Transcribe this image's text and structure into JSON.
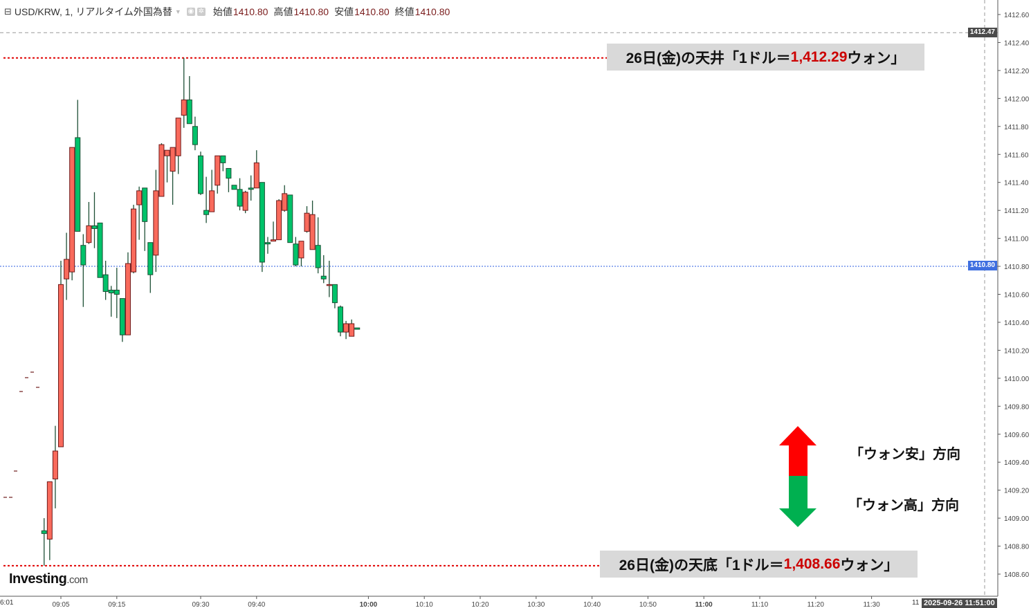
{
  "legend": {
    "symbol": "USD/KRW, 1, リアルタイム外国為替",
    "open_label": "始値",
    "open": "1410.80",
    "high_label": "高値",
    "high": "1410.80",
    "low_label": "安値",
    "low": "1410.80",
    "close_label": "終値",
    "close": "1410.80"
  },
  "annotations": {
    "top_prefix": "26日(金)の天井「1ドル＝",
    "top_value": "1,412.29",
    "top_suffix": "ウォン」",
    "bottom_prefix": "26日(金)の天底「1ドル＝",
    "bottom_value": "1,408.66",
    "bottom_suffix": "ウォン」",
    "up_direction": "「ウォン安」方向",
    "down_direction": "「ウォン高」方向"
  },
  "watermark": {
    "brand": "Investing",
    "suffix": ".com"
  },
  "axis_readouts": {
    "crosshair_price": "1412.47",
    "last_price": "1410.80",
    "crosshair_time": "2025-09-26 11:51:00",
    "left_cut_label": "6:01",
    "right_cut_label": "11"
  },
  "colors": {
    "up": "#f96a5c",
    "up_border": "#6e1a1a",
    "down": "#00c26a",
    "down_border": "#1d4f35",
    "wick": "#1d4f35",
    "last_price_line": "#2a5be0",
    "extreme_line": "#e00000",
    "arrow_up": "#ff0000",
    "arrow_down": "#00b050"
  },
  "chart_data": {
    "type": "candlestick",
    "title": "USD/KRW, 1, リアルタイム外国為替",
    "ylim": [
      1408.5,
      1412.65
    ],
    "yticks": [
      "1412.60",
      "1412.40",
      "1412.20",
      "1412.00",
      "1411.80",
      "1411.60",
      "1411.40",
      "1411.20",
      "1411.00",
      "1410.80",
      "1410.60",
      "1410.40",
      "1410.20",
      "1410.00",
      "1409.80",
      "1409.60",
      "1409.40",
      "1409.20",
      "1409.00",
      "1408.80",
      "1408.60"
    ],
    "xticks": [
      "09:05",
      "09:15",
      "09:30",
      "09:40",
      "10:00",
      "10:10",
      "10:20",
      "10:30",
      "10:40",
      "10:50",
      "11:00",
      "11:10",
      "11:20",
      "11:30"
    ],
    "reference_lines": {
      "high": 1412.29,
      "low": 1408.66,
      "last": 1410.8,
      "crosshair": 1412.47
    },
    "candles": [
      [
        "09:02",
        1408.91,
        1409.0,
        1408.66,
        1408.89
      ],
      [
        "09:03",
        1408.85,
        1409.26,
        1408.7,
        1409.26
      ],
      [
        "09:04",
        1409.28,
        1409.66,
        1409.07,
        1409.48
      ],
      [
        "09:05",
        1409.51,
        1410.84,
        1409.51,
        1410.67
      ],
      [
        "09:06",
        1410.71,
        1411.04,
        1410.56,
        1410.85
      ],
      [
        "09:07",
        1410.76,
        1411.65,
        1410.7,
        1411.65
      ],
      [
        "09:08",
        1411.72,
        1411.99,
        1411.05,
        1411.05
      ],
      [
        "09:09",
        1410.95,
        1411.03,
        1410.51,
        1410.81
      ],
      [
        "09:10",
        1410.97,
        1411.26,
        1410.96,
        1411.09
      ],
      [
        "09:11",
        1411.09,
        1411.33,
        1410.93,
        1411.07
      ],
      [
        "09:12",
        1411.11,
        1411.11,
        1410.72,
        1410.72
      ],
      [
        "09:13",
        1410.74,
        1410.84,
        1410.56,
        1410.62
      ],
      [
        "09:14",
        1410.63,
        1410.66,
        1410.44,
        1410.61
      ],
      [
        "09:15",
        1410.63,
        1410.79,
        1410.43,
        1410.6
      ],
      [
        "09:16",
        1410.57,
        1410.57,
        1410.26,
        1410.31
      ],
      [
        "09:17",
        1410.31,
        1410.9,
        1410.31,
        1410.82
      ],
      [
        "09:18",
        1410.76,
        1411.24,
        1410.75,
        1411.21
      ],
      [
        "09:19",
        1411.24,
        1411.37,
        1410.99,
        1411.34
      ],
      [
        "09:20",
        1411.36,
        1411.36,
        1410.91,
        1411.12
      ],
      [
        "09:21",
        1410.97,
        1410.97,
        1410.61,
        1410.74
      ],
      [
        "09:22",
        1410.88,
        1411.49,
        1410.76,
        1411.34
      ],
      [
        "09:23",
        1411.3,
        1411.68,
        1411.3,
        1411.67
      ],
      [
        "09:24",
        1411.59,
        1411.63,
        1411.4,
        1411.63
      ],
      [
        "09:25",
        1411.48,
        1411.65,
        1411.24,
        1411.65
      ],
      [
        "09:26",
        1411.59,
        1411.86,
        1411.46,
        1411.86
      ],
      [
        "09:27",
        1411.88,
        1412.29,
        1411.79,
        1411.99
      ],
      [
        "09:28",
        1411.99,
        1412.16,
        1411.82,
        1411.82
      ],
      [
        "09:29",
        1411.8,
        1411.87,
        1411.63,
        1411.67
      ],
      [
        "09:30",
        1411.59,
        1411.62,
        1411.31,
        1411.32
      ],
      [
        "09:31",
        1411.2,
        1411.44,
        1411.11,
        1411.17
      ],
      [
        "09:32",
        1411.19,
        1411.49,
        1411.19,
        1411.34
      ],
      [
        "09:33",
        1411.38,
        1411.59,
        1411.32,
        1411.59
      ],
      [
        "09:34",
        1411.59,
        1411.59,
        1411.48,
        1411.54
      ],
      [
        "09:35",
        1411.5,
        1411.5,
        1411.33,
        1411.43
      ],
      [
        "09:36",
        1411.38,
        1411.38,
        1411.35,
        1411.35
      ],
      [
        "09:37",
        1411.35,
        1411.43,
        1411.2,
        1411.23
      ],
      [
        "09:38",
        1411.2,
        1411.34,
        1411.18,
        1411.33
      ],
      [
        "09:39",
        1411.36,
        1411.45,
        1411.27,
        1411.35
      ],
      [
        "09:40",
        1411.36,
        1411.63,
        1411.36,
        1411.54
      ],
      [
        "09:41",
        1411.4,
        1411.4,
        1410.76,
        1410.83
      ],
      [
        "09:42",
        1410.97,
        1411.01,
        1410.89,
        1410.96
      ],
      [
        "09:43",
        1410.98,
        1411.12,
        1410.98,
        1410.99
      ],
      [
        "09:44",
        1410.99,
        1411.28,
        1410.99,
        1411.27
      ],
      [
        "09:45",
        1411.2,
        1411.38,
        1411.19,
        1411.32
      ],
      [
        "09:46",
        1411.31,
        1411.31,
        1410.97,
        1410.97
      ],
      [
        "09:47",
        1410.96,
        1411.01,
        1410.8,
        1410.81
      ],
      [
        "09:48",
        1410.86,
        1410.98,
        1410.8,
        1410.98
      ],
      [
        "09:49",
        1411.05,
        1411.23,
        1411.04,
        1411.18
      ],
      [
        "09:50",
        1410.92,
        1411.27,
        1410.92,
        1411.17
      ],
      [
        "09:51",
        1410.95,
        1411.15,
        1410.75,
        1410.79
      ],
      [
        "09:52",
        1410.73,
        1410.88,
        1410.68,
        1410.71
      ],
      [
        "09:53",
        1410.67,
        1410.84,
        1410.58,
        1410.67
      ],
      [
        "09:54",
        1410.67,
        1410.67,
        1410.5,
        1410.54
      ],
      [
        "09:55",
        1410.51,
        1410.52,
        1410.3,
        1410.33
      ],
      [
        "09:56",
        1410.33,
        1410.41,
        1410.28,
        1410.39
      ],
      [
        "09:57",
        1410.3,
        1410.42,
        1410.3,
        1410.39
      ],
      [
        "09:58",
        1410.36,
        1410.36,
        1410.35,
        1410.35
      ]
    ]
  }
}
